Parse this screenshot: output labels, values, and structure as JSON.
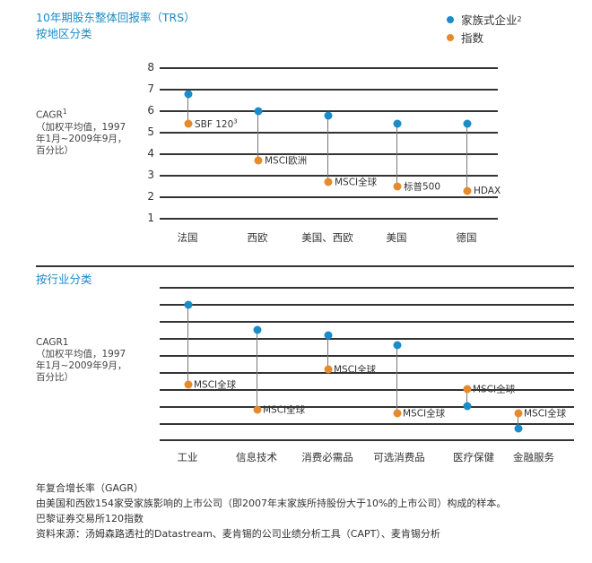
{
  "header": {
    "title": "10年期股东整体回报率（TRS）",
    "subtitle_region": "按地区分类",
    "subtitle_industry": "按行业分类"
  },
  "legend": {
    "family": {
      "label": "家族式企业",
      "sup": "2",
      "color": "#1a8cc7"
    },
    "index": {
      "label": "指数",
      "color": "#e68a2e"
    }
  },
  "ylabel_region": {
    "line1": "CAGR",
    "line1_sup": "1",
    "line2": "（加权平均值，1997",
    "line3": "年1月~2009年9月，",
    "line4": "百分比）"
  },
  "ylabel_industry": {
    "line1": "CAGR1",
    "line2": "（加权平均值，1997",
    "line3": "年1月~2009年9月，",
    "line4": "百分比）"
  },
  "chart_data": [
    {
      "type": "scatter",
      "title": "10年期股东整体回报率（TRS）按地区分类",
      "ylabel": "CAGR（加权平均值，1997年1月~2009年9月，百分比）",
      "ylim": [
        1,
        8
      ],
      "yticks": [
        "8",
        "7",
        "6",
        "5",
        "4",
        "3",
        "2",
        "1"
      ],
      "grid": true,
      "categories": [
        "法国",
        "西欧",
        "美国、西欧",
        "美国",
        "德国"
      ],
      "series": [
        {
          "name": "家族式企业",
          "values": [
            6.8,
            6.0,
            5.8,
            5.4,
            5.4
          ]
        },
        {
          "name": "指数",
          "values": [
            5.4,
            3.7,
            2.7,
            2.5,
            2.3
          ]
        }
      ],
      "index_labels": [
        "SBF 120",
        "MSCI欧洲",
        "MSCI全球",
        "标普500",
        "HDAX"
      ],
      "index_label_sups": [
        "3",
        "",
        "",
        "",
        ""
      ]
    },
    {
      "type": "scatter",
      "title": "按行业分类",
      "ylabel": "CAGR1（加权平均值，1997年1月~2009年9月，百分比）",
      "grid": true,
      "categories": [
        "工业",
        "信息技术",
        "消费必需品",
        "可选消费品",
        "医疗保健",
        "金融服务"
      ],
      "series": [
        {
          "name": "家族式企业",
          "values": [
            8.0,
            6.5,
            6.2,
            5.6,
            2.0,
            0.7
          ]
        },
        {
          "name": "指数",
          "values": [
            3.3,
            1.8,
            4.2,
            1.6,
            3.0,
            1.6
          ]
        }
      ],
      "index_labels": [
        "MSCI全球",
        "MSCI全球",
        "MSCI全球",
        "MSCI全球",
        "MSCI全球",
        "MSCI全球"
      ]
    }
  ],
  "notes": [
    "年复合增长率（GAGR）",
    "由美国和西欧154家受家族影响的上市公司（即2007年末家族所持股份大于10%的上市公司）构成的样本。",
    "巴黎证券交易所120指数",
    "资料来源：汤姆森路透社的Datastream、麦肯锡的公司业绩分析工具（CAPT）、麦肯锡分析"
  ]
}
